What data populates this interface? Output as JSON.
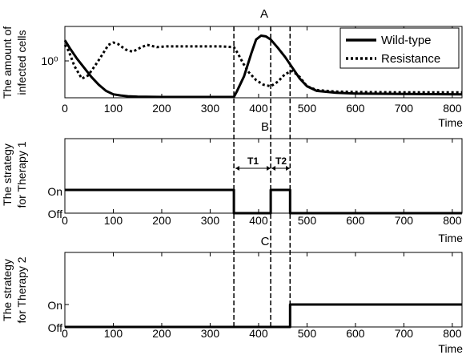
{
  "chart_data": [
    {
      "type": "line",
      "title": "A",
      "ylabel": [
        "The amount of",
        "infected cells"
      ],
      "xlabel": "Time",
      "yscale": "log",
      "ytick_label": "10⁰",
      "ytick_value": 1,
      "xlim": [
        0,
        820
      ],
      "xticks": [
        0,
        100,
        200,
        300,
        400,
        500,
        600,
        700,
        800
      ],
      "legend": "top-right",
      "series": [
        {
          "name": "Wild-type",
          "style": "solid",
          "x": [
            0,
            10,
            25,
            40,
            55,
            70,
            85,
            100,
            115,
            130,
            150,
            200,
            250,
            300,
            349,
            355,
            370,
            385,
            395,
            405,
            415,
            425,
            440,
            455,
            470,
            485,
            500,
            520,
            560,
            600,
            700,
            820
          ],
          "y": [
            0.72,
            0.62,
            0.48,
            0.36,
            0.24,
            0.14,
            0.06,
            0.015,
            0.0,
            -0.01,
            -0.015,
            -0.02,
            -0.02,
            -0.02,
            -0.02,
            0.05,
            0.25,
            0.55,
            0.73,
            0.78,
            0.77,
            0.73,
            0.62,
            0.5,
            0.36,
            0.22,
            0.12,
            0.06,
            0.035,
            0.025,
            0.02,
            0.015
          ]
        },
        {
          "name": "Resistance",
          "style": "dotted",
          "x": [
            0,
            8,
            20,
            35,
            48,
            58,
            68,
            80,
            90,
            100,
            110,
            125,
            140,
            155,
            170,
            190,
            210,
            240,
            280,
            320,
            349,
            358,
            368,
            380,
            395,
            410,
            425,
            440,
            455,
            470,
            485,
            500,
            520,
            560,
            600,
            700,
            820
          ],
          "y": [
            0.66,
            0.58,
            0.38,
            0.22,
            0.26,
            0.35,
            0.44,
            0.56,
            0.66,
            0.69,
            0.67,
            0.6,
            0.57,
            0.62,
            0.66,
            0.63,
            0.64,
            0.64,
            0.64,
            0.64,
            0.63,
            0.54,
            0.42,
            0.3,
            0.2,
            0.14,
            0.12,
            0.18,
            0.28,
            0.32,
            0.24,
            0.12,
            0.07,
            0.05,
            0.045,
            0.04,
            0.04
          ]
        }
      ]
    },
    {
      "type": "line",
      "title": "B",
      "ylabel": [
        "The strategy",
        "for Therapy 1"
      ],
      "xlabel": "Time",
      "yticks": [
        "Off",
        "On"
      ],
      "xlim": [
        0,
        820
      ],
      "xticks": [
        0,
        100,
        200,
        300,
        400,
        500,
        600,
        700,
        800
      ],
      "annotations": [
        "T1",
        "T2"
      ],
      "series": [
        {
          "name": "",
          "style": "solid",
          "x": [
            0,
            349,
            349,
            425,
            425,
            465,
            465,
            820
          ],
          "y": [
            1,
            1,
            0,
            0,
            1,
            1,
            0,
            0
          ]
        }
      ]
    },
    {
      "type": "line",
      "title": "C",
      "ylabel": [
        "The strategy",
        "for Therapy 2"
      ],
      "xlabel": "Time",
      "yticks": [
        "Off",
        "On"
      ],
      "xlim": [
        0,
        820
      ],
      "xticks": [
        0,
        100,
        200,
        300,
        400,
        500,
        600,
        700,
        800
      ],
      "series": [
        {
          "name": "",
          "style": "solid",
          "x": [
            0,
            465,
            465,
            820
          ],
          "y": [
            0,
            0,
            1,
            1
          ]
        }
      ]
    }
  ],
  "switch_times": [
    349,
    425,
    465
  ],
  "colors": {
    "line": "#000000",
    "background": "#ffffff"
  }
}
